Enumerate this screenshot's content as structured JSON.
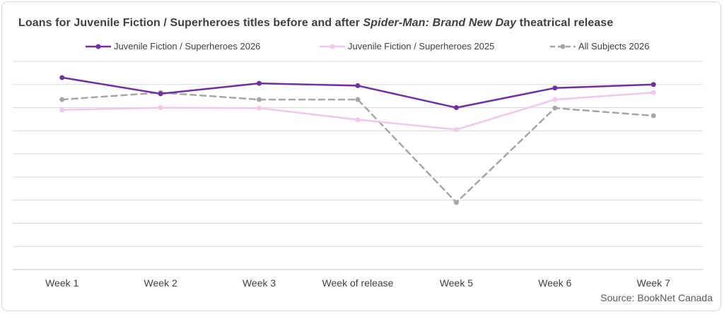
{
  "title": {
    "pre": "Loans for Juvenile Fiction / Superheroes titles before and after ",
    "italic": "Spider-Man: Brand New Day",
    "post": " theatrical release"
  },
  "source": "Source: BookNet Canada",
  "chart_data": {
    "type": "line",
    "title": "Loans for Juvenile Fiction / Superheroes titles before and after Spider-Man: Brand New Day theatrical release",
    "categories": [
      "Week 1",
      "Week 2",
      "Week 3",
      "Week of release",
      "Week 5",
      "Week 6",
      "Week 7"
    ],
    "ylim": [
      0,
      9
    ],
    "grid": true,
    "legend_position": "top",
    "y_axis_labels_shown": false,
    "series": [
      {
        "name": "Juvenile Fiction / Superheroes 2026",
        "color": "#7030a0",
        "dash": false,
        "values": [
          8.3,
          7.6,
          8.05,
          7.95,
          7.0,
          7.85,
          8.0
        ]
      },
      {
        "name": "Juvenile Fiction / Superheroes 2025",
        "color": "#f0c8ee",
        "dash": false,
        "values": [
          6.9,
          7.0,
          6.98,
          6.48,
          6.05,
          7.35,
          7.65
        ]
      },
      {
        "name": "All Subjects 2026",
        "color": "#a6a6a6",
        "dash": true,
        "values": [
          7.35,
          7.65,
          7.35,
          7.35,
          2.9,
          6.98,
          6.65
        ]
      }
    ]
  }
}
